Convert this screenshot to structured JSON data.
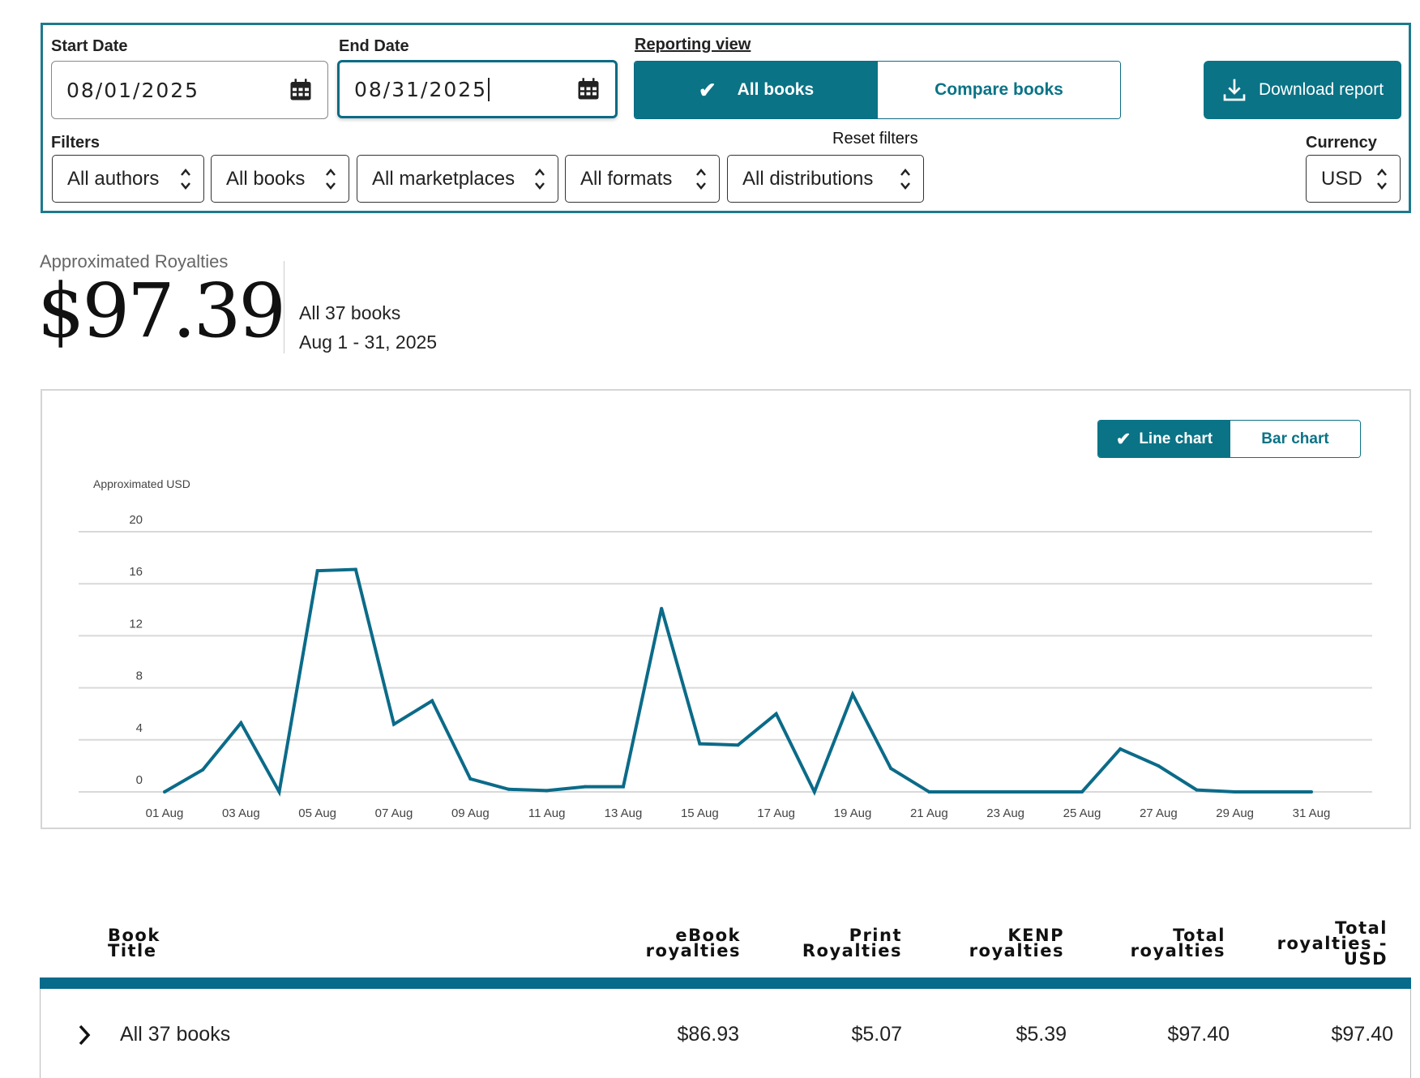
{
  "filters_panel": {
    "start_date": {
      "label": "Start Date",
      "value": "08/01/2025"
    },
    "end_date": {
      "label": "End Date",
      "value": "08/31/2025"
    },
    "reporting_view": {
      "label": "Reporting view",
      "options": [
        "All books",
        "Compare books"
      ],
      "selected": "All books"
    },
    "download_label": "Download report",
    "filters_label": "Filters",
    "dropdowns": [
      "All authors",
      "All books",
      "All marketplaces",
      "All formats",
      "All distributions"
    ],
    "reset_label": "Reset filters",
    "currency": {
      "label": "Currency",
      "value": "USD"
    }
  },
  "summary": {
    "title": "Approximated Royalties",
    "amount": "$97.39",
    "books": "All 37 books",
    "range": "Aug 1 - 31, 2025"
  },
  "chart_toggle": {
    "options": [
      "Line chart",
      "Bar chart"
    ],
    "selected": "Line chart"
  },
  "colors": {
    "accent": "#0a7386",
    "line": "#0b6b88",
    "grid": "#d9d9d9"
  },
  "chart_data": {
    "type": "line",
    "ylabel": "Approximated USD",
    "ylim": [
      0,
      20
    ],
    "yticks": [
      0,
      4,
      8,
      12,
      16,
      20
    ],
    "xticks": [
      "01 Aug",
      "03 Aug",
      "05 Aug",
      "07 Aug",
      "09 Aug",
      "11 Aug",
      "13 Aug",
      "15 Aug",
      "17 Aug",
      "19 Aug",
      "21 Aug",
      "23 Aug",
      "25 Aug",
      "27 Aug",
      "29 Aug",
      "31 Aug"
    ],
    "x": [
      1,
      2,
      3,
      4,
      5,
      6,
      7,
      8,
      9,
      10,
      11,
      12,
      13,
      14,
      15,
      16,
      17,
      18,
      19,
      20,
      21,
      22,
      23,
      24,
      25,
      26,
      27,
      28,
      29,
      30,
      31
    ],
    "series": [
      {
        "name": "Approximated USD",
        "values": [
          0,
          1.7,
          5.3,
          0,
          17.0,
          17.1,
          5.2,
          7.0,
          1.0,
          0.2,
          0.1,
          0.4,
          0.4,
          14.1,
          3.7,
          3.6,
          6.0,
          0,
          7.5,
          1.8,
          0,
          0,
          0,
          0,
          0,
          3.3,
          2.0,
          0.15,
          0,
          0,
          0
        ]
      }
    ]
  },
  "table": {
    "headers": [
      [
        "Book",
        "Title"
      ],
      [
        "eBook",
        "royalties"
      ],
      [
        "Print",
        "Royalties"
      ],
      [
        "KENP",
        "royalties"
      ],
      [
        "Total",
        "royalties"
      ],
      [
        "Total",
        "royalties -",
        "USD"
      ]
    ],
    "rows": [
      {
        "title": "All 37 books",
        "ebook": "$86.93",
        "print": "$5.07",
        "kenp": "$5.39",
        "total": "$97.40",
        "total_usd": "$97.40"
      }
    ]
  }
}
